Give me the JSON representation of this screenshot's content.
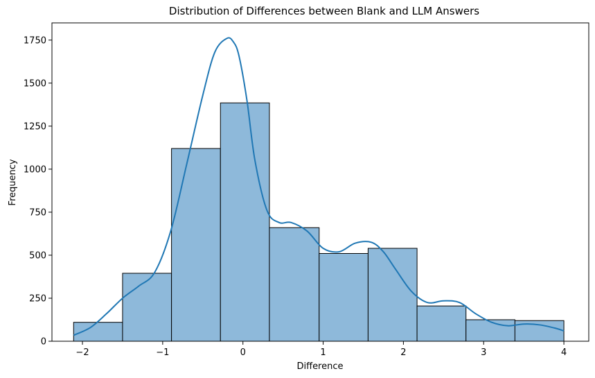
{
  "chart_data": {
    "type": "bar",
    "subtype": "histogram_with_kde",
    "title": "Distribution of Differences between Blank and LLM Answers",
    "xlabel": "Difference",
    "ylabel": "Frequency",
    "xlim": [
      -2.38,
      4.31
    ],
    "ylim": [
      0,
      1850
    ],
    "xticks": [
      -2,
      -1,
      0,
      1,
      2,
      3,
      4
    ],
    "xtick_labels": [
      "−2",
      "−1",
      "0",
      "1",
      "2",
      "3",
      "4"
    ],
    "yticks": [
      0,
      250,
      500,
      750,
      1000,
      1250,
      1500,
      1750
    ],
    "ytick_labels": [
      "0",
      "250",
      "500",
      "750",
      "1000",
      "1250",
      "1500",
      "1750"
    ],
    "grid": false,
    "legend": "none",
    "bins": [
      {
        "x0": -2.11,
        "x1": -1.5,
        "count": 110
      },
      {
        "x0": -1.5,
        "x1": -0.89,
        "count": 395
      },
      {
        "x0": -0.89,
        "x1": -0.28,
        "count": 1120
      },
      {
        "x0": -0.28,
        "x1": 0.33,
        "count": 1385
      },
      {
        "x0": 0.33,
        "x1": 0.95,
        "count": 660
      },
      {
        "x0": 0.95,
        "x1": 1.56,
        "count": 510
      },
      {
        "x0": 1.56,
        "x1": 2.17,
        "count": 540
      },
      {
        "x0": 2.17,
        "x1": 2.78,
        "count": 205
      },
      {
        "x0": 2.78,
        "x1": 3.39,
        "count": 125
      },
      {
        "x0": 3.39,
        "x1": 4.0,
        "count": 120
      }
    ],
    "kde": {
      "x": [
        -2.11,
        -1.9,
        -1.7,
        -1.5,
        -1.3,
        -1.1,
        -0.9,
        -0.7,
        -0.5,
        -0.35,
        -0.2,
        -0.12,
        -0.05,
        0.05,
        0.15,
        0.3,
        0.45,
        0.6,
        0.8,
        1.0,
        1.2,
        1.4,
        1.6,
        1.75,
        1.9,
        2.1,
        2.3,
        2.5,
        2.7,
        2.9,
        3.1,
        3.3,
        3.5,
        3.7,
        3.9,
        4.0
      ],
      "y": [
        35,
        80,
        160,
        250,
        320,
        400,
        640,
        1030,
        1430,
        1680,
        1760,
        1740,
        1660,
        1400,
        1050,
        760,
        690,
        690,
        640,
        540,
        520,
        570,
        575,
        520,
        420,
        290,
        225,
        235,
        225,
        160,
        110,
        90,
        100,
        95,
        75,
        60
      ]
    },
    "colors": {
      "bar_fill": "#8eb9da",
      "bar_edge": "#000000",
      "kde_line": "#1f77b4"
    }
  }
}
